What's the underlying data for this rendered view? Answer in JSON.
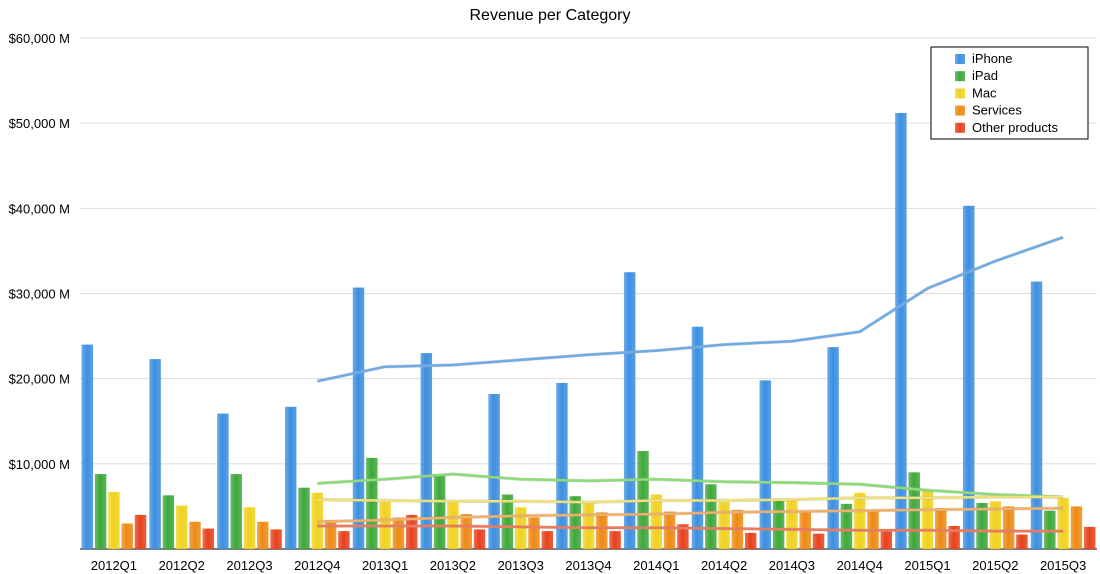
{
  "chart_data": {
    "type": "bar",
    "title": "Revenue per Category",
    "xlabel": "",
    "ylabel": "",
    "ylim": [
      0,
      60000
    ],
    "y_ticks": [
      10000,
      20000,
      30000,
      40000,
      50000,
      60000
    ],
    "y_tick_labels": [
      "$10,000 M",
      "$20,000 M",
      "$30,000 M",
      "$40,000 M",
      "$50,000 M",
      "$60,000 M"
    ],
    "grid": true,
    "legend_position": "top-right",
    "categories": [
      "2012Q1",
      "2012Q2",
      "2012Q3",
      "2012Q4",
      "2013Q1",
      "2013Q2",
      "2013Q3",
      "2013Q4",
      "2014Q1",
      "2014Q2",
      "2014Q3",
      "2014Q4",
      "2015Q1",
      "2015Q2",
      "2015Q3"
    ],
    "series": [
      {
        "name": "iPhone",
        "color": "#3d8fe0",
        "values": [
          24000,
          22300,
          15900,
          16700,
          30700,
          23000,
          18200,
          19500,
          32500,
          26100,
          19800,
          23700,
          51200,
          40300,
          31400
        ]
      },
      {
        "name": "iPad",
        "color": "#3ea83a",
        "values": [
          8800,
          6300,
          8800,
          7200,
          10700,
          8800,
          6400,
          6200,
          11500,
          7600,
          5900,
          5300,
          9000,
          5400,
          4500
        ]
      },
      {
        "name": "Mac",
        "color": "#f0d21e",
        "values": [
          6700,
          5100,
          4900,
          6600,
          5500,
          5500,
          4900,
          5600,
          6400,
          5500,
          5700,
          6600,
          6900,
          5600,
          6000
        ]
      },
      {
        "name": "Services",
        "color": "#ee8a14",
        "values": [
          3000,
          3200,
          3200,
          3400,
          3700,
          4100,
          3700,
          4300,
          4400,
          4600,
          4500,
          4600,
          4800,
          5000,
          5000
        ]
      },
      {
        "name": "Other products",
        "color": "#e8411c",
        "values": [
          4000,
          2400,
          2300,
          2100,
          4000,
          2300,
          2100,
          2100,
          2900,
          1900,
          1800,
          2200,
          2700,
          1700,
          2600
        ]
      }
    ],
    "trend_lines": [
      {
        "series": "iPhone",
        "color": "#6fabe6",
        "start_index": 3,
        "values": [
          19700,
          21400,
          21600,
          22200,
          22800,
          23300,
          24000,
          24400,
          25500,
          30600,
          33800,
          36600
        ]
      },
      {
        "series": "iPad",
        "color": "#8ddc78",
        "start_index": 3,
        "values": [
          7700,
          8200,
          8800,
          8200,
          8000,
          8200,
          7900,
          7800,
          7600,
          6900,
          6400,
          6100
        ]
      },
      {
        "series": "Mac",
        "color": "#eee07a",
        "start_index": 3,
        "values": [
          5800,
          5700,
          5600,
          5600,
          5500,
          5700,
          5700,
          5800,
          6000,
          6000,
          6100,
          6100
        ]
      },
      {
        "series": "Services",
        "color": "#f1b06a",
        "start_index": 3,
        "values": [
          3200,
          3400,
          3700,
          3900,
          4000,
          4100,
          4300,
          4400,
          4500,
          4600,
          4700,
          4800
        ]
      },
      {
        "series": "Other products",
        "color": "#ee7a5e",
        "start_index": 3,
        "values": [
          2700,
          2700,
          2700,
          2600,
          2500,
          2500,
          2400,
          2300,
          2200,
          2200,
          2100,
          2100
        ]
      }
    ]
  }
}
